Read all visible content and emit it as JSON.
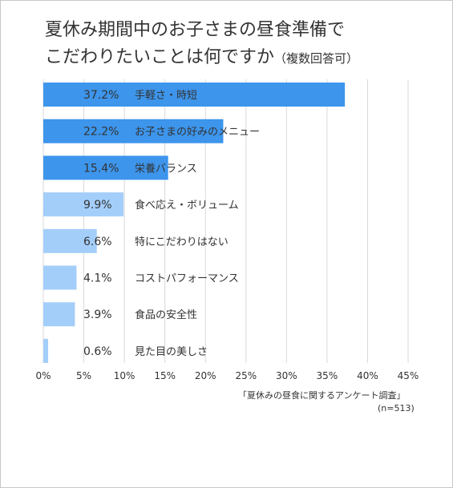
{
  "chart_data": {
    "type": "bar",
    "orientation": "horizontal",
    "title_line1": "夏休み期間中のお子さまの昼食準備で",
    "title_line2": "こだわりたいことは何ですか",
    "title_note": "（複数回答可）",
    "categories": [
      "手軽さ・時短",
      "お子さまの好みのメニュー",
      "栄養バランス",
      "食べ応え・ボリューム",
      "特にこだわりはない",
      "コストパフォーマンス",
      "食品の安全性",
      "見た目の美しさ"
    ],
    "values": [
      37.2,
      22.2,
      15.4,
      9.9,
      6.6,
      4.1,
      3.9,
      0.6
    ],
    "value_labels": [
      "37.2%",
      "22.2%",
      "15.4%",
      "9.9%",
      "6.6%",
      "4.1%",
      "3.9%",
      "0.6%"
    ],
    "x_ticks": [
      "0%",
      "5%",
      "10%",
      "15%",
      "20%",
      "25%",
      "30%",
      "35%",
      "40%",
      "45%"
    ],
    "xlim": [
      0,
      45
    ],
    "grid": true,
    "colors": {
      "highlight": "#3d95ec",
      "normal": "#a4cefa",
      "grid": "#d9d9d9",
      "text": "#333333"
    },
    "highlight_count": 3,
    "source": "「夏休みの昼食に関するアンケート調査」",
    "sample": "(n=513)"
  }
}
